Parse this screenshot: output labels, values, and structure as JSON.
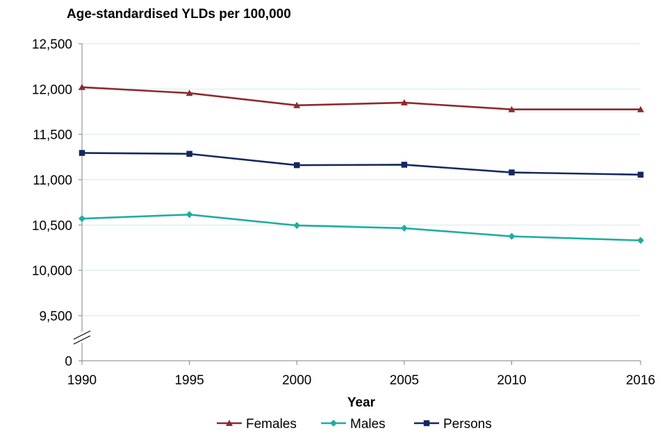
{
  "chart_data": {
    "type": "line",
    "title": "Age-standardised YLDs per 100,000",
    "xlabel": "Year",
    "ylabel": "",
    "x": [
      1990,
      1995,
      2000,
      2005,
      2010,
      2016
    ],
    "x_ticks": [
      "1990",
      "1995",
      "2000",
      "2005",
      "2010",
      "2016"
    ],
    "y_ticks": [
      {
        "value": 12500,
        "label": "12,500"
      },
      {
        "value": 12000,
        "label": "12,000"
      },
      {
        "value": 11500,
        "label": "11,500"
      },
      {
        "value": 11000,
        "label": "11,000"
      },
      {
        "value": 10500,
        "label": "10,500"
      },
      {
        "value": 10000,
        "label": "10,000"
      },
      {
        "value": 9500,
        "label": "9,500"
      },
      {
        "value": 0,
        "label": "0"
      }
    ],
    "ylim": [
      9250,
      12500
    ],
    "axis_break": "between 0 and 9,500",
    "grid": "horizontal",
    "legend_position": "bottom",
    "series": [
      {
        "name": "Females",
        "color": "#8B2A2F",
        "marker": "triangle",
        "values": [
          12020,
          11955,
          11820,
          11850,
          11775,
          11775
        ]
      },
      {
        "name": "Males",
        "color": "#1FADA0",
        "marker": "diamond",
        "values": [
          10570,
          10615,
          10495,
          10465,
          10375,
          10330
        ]
      },
      {
        "name": "Persons",
        "color": "#14285E",
        "marker": "square",
        "values": [
          11295,
          11285,
          11160,
          11165,
          11080,
          11055
        ]
      }
    ]
  }
}
